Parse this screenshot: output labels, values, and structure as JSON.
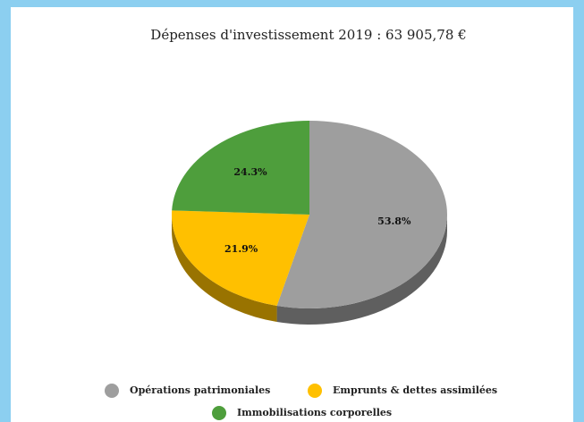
{
  "chart_data": {
    "type": "pie",
    "title": "Dépenses d'investissement 2019 : 63 905,78 €",
    "categories": [
      "Opérations patrimoniales",
      "Emprunts & dettes assimilées",
      "Immobilisations corporelles"
    ],
    "values": [
      53.8,
      21.9,
      24.3
    ],
    "value_labels": [
      "53.8%",
      "21.9%",
      "24.3%"
    ],
    "colors": [
      "#9e9e9e",
      "#ffc000",
      "#4e9e3c"
    ],
    "legend": "bottom"
  }
}
